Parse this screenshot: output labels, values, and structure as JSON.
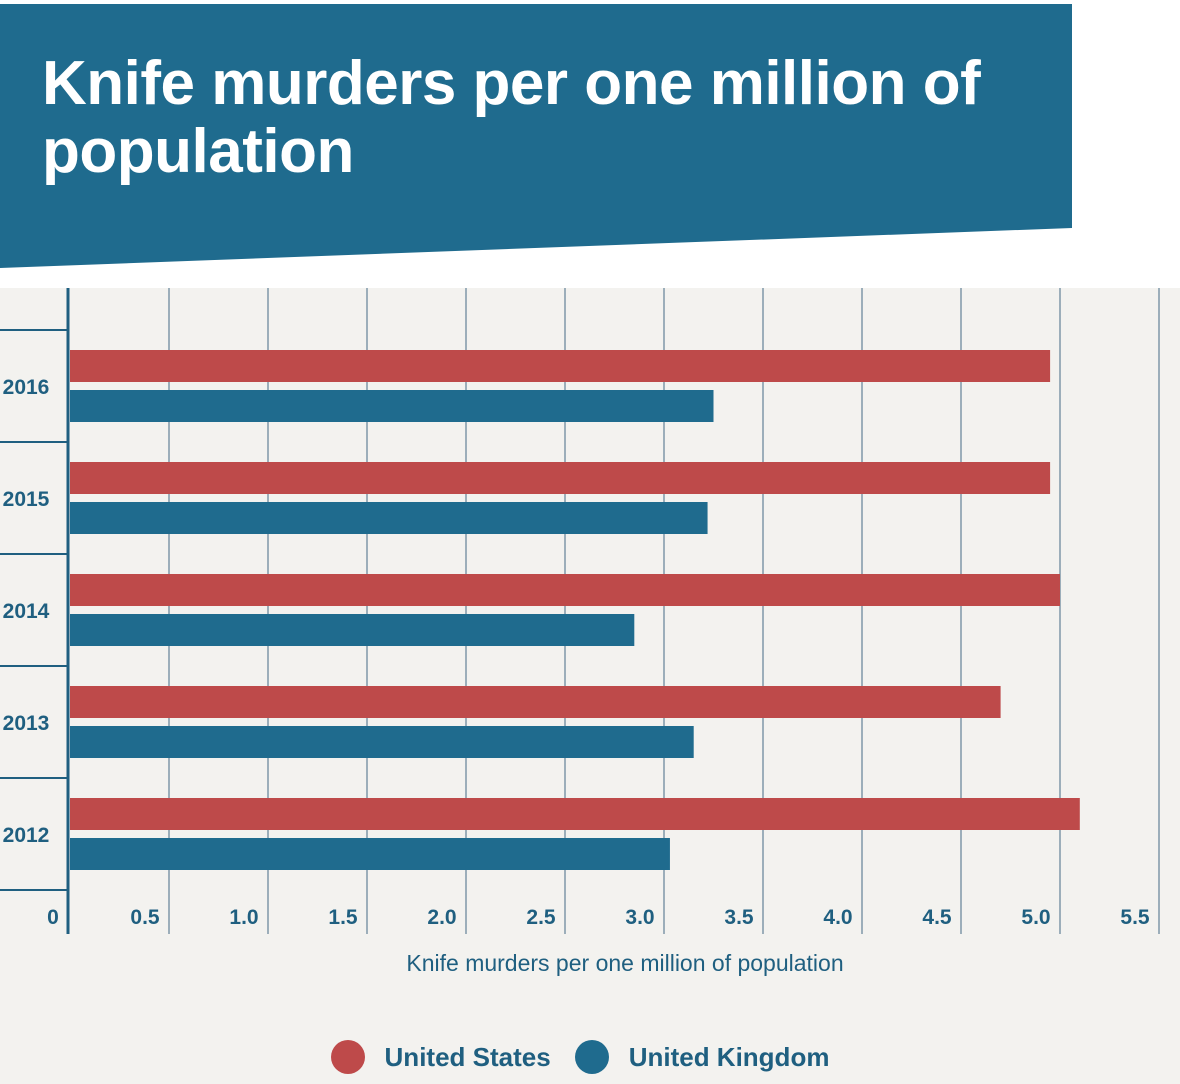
{
  "colors": {
    "banner": "#1f6b8e",
    "panel_bg": "#f3f2ef",
    "grid": "#7f98a8",
    "axis": "#1f5f80",
    "text": "#1f5f80",
    "us": "#be4a4a",
    "uk": "#1f6b8e"
  },
  "chart_data": {
    "type": "bar",
    "orientation": "horizontal",
    "title": "Knife murders per one million of population",
    "xlabel": "Knife murders per one million of population",
    "ylabel": "",
    "categories": [
      "2016",
      "2015",
      "2014",
      "2013",
      "2012"
    ],
    "series": [
      {
        "name": "United States",
        "color": "#be4a4a",
        "values": [
          4.95,
          4.95,
          5.0,
          4.7,
          5.1
        ]
      },
      {
        "name": "United Kingdom",
        "color": "#1f6b8e",
        "values": [
          3.25,
          3.22,
          2.85,
          3.15,
          3.03
        ]
      }
    ],
    "xlim": [
      0,
      5.5
    ],
    "xticks": [
      "0",
      "0.5",
      "1.0",
      "1.5",
      "2.0",
      "2.5",
      "3.0",
      "3.5",
      "4.0",
      "4.5",
      "5.0",
      "5.5"
    ],
    "grid": true,
    "legend_position": "bottom-center"
  }
}
